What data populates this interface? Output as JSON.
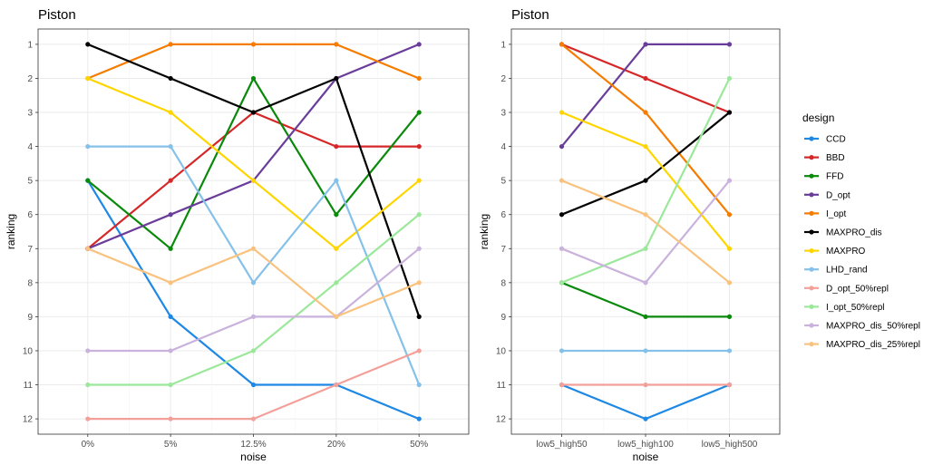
{
  "chart_data": [
    {
      "type": "line",
      "title": "Piston",
      "xlabel": "noise",
      "ylabel": "ranking",
      "categories": [
        "0%",
        "5%",
        "12.5%",
        "20%",
        "50%"
      ],
      "ylim": [
        12,
        1
      ],
      "y_reversed": true,
      "y_ticks": [
        1,
        2,
        3,
        4,
        5,
        6,
        7,
        8,
        9,
        10,
        11,
        12
      ],
      "grid": true,
      "series": [
        {
          "name": "CCD",
          "color": "#1e88e5",
          "values": [
            5,
            9,
            11,
            11,
            12
          ]
        },
        {
          "name": "BBD",
          "color": "#d62728",
          "values": [
            7,
            5,
            3,
            4,
            4
          ]
        },
        {
          "name": "FFD",
          "color": "#0a8a0a",
          "values": [
            5,
            7,
            2,
            6,
            3
          ]
        },
        {
          "name": "D_opt",
          "color": "#6a3d9a",
          "values": [
            7,
            6,
            5,
            2,
            1
          ]
        },
        {
          "name": "I_opt",
          "color": "#f57c00",
          "values": [
            2,
            1,
            1,
            1,
            2
          ]
        },
        {
          "name": "MAXPRO_dis",
          "color": "#000000",
          "values": [
            1,
            2,
            3,
            2,
            9
          ]
        },
        {
          "name": "MAXPRO",
          "color": "#ffd500",
          "values": [
            2,
            3,
            5,
            7,
            5
          ]
        },
        {
          "name": "LHD_rand",
          "color": "#85c1e9",
          "values": [
            4,
            4,
            8,
            5,
            11
          ]
        },
        {
          "name": "D_opt_50%repl",
          "color": "#f4a09a",
          "values": [
            12,
            12,
            12,
            11,
            10
          ]
        },
        {
          "name": "I_opt_50%repl",
          "color": "#9be89b",
          "values": [
            11,
            11,
            10,
            8,
            6
          ]
        },
        {
          "name": "MAXPRO_dis_50%repl",
          "color": "#c9b2dc",
          "values": [
            10,
            10,
            9,
            9,
            7
          ]
        },
        {
          "name": "MAXPRO_dis_25%repl",
          "color": "#f9c27e",
          "values": [
            7,
            8,
            7,
            9,
            8
          ]
        }
      ]
    },
    {
      "type": "line",
      "title": "Piston",
      "xlabel": "noise",
      "ylabel": "ranking",
      "categories": [
        "low5_high50",
        "low5_high100",
        "low5_high500"
      ],
      "ylim": [
        12,
        1
      ],
      "y_reversed": true,
      "y_ticks": [
        1,
        2,
        3,
        4,
        5,
        6,
        7,
        8,
        9,
        10,
        11,
        12
      ],
      "grid": true,
      "series": [
        {
          "name": "CCD",
          "color": "#1e88e5",
          "values": [
            11,
            12,
            11
          ]
        },
        {
          "name": "BBD",
          "color": "#d62728",
          "values": [
            1,
            2,
            3
          ]
        },
        {
          "name": "FFD",
          "color": "#0a8a0a",
          "values": [
            8,
            9,
            9
          ]
        },
        {
          "name": "D_opt",
          "color": "#6a3d9a",
          "values": [
            4,
            1,
            1
          ]
        },
        {
          "name": "I_opt",
          "color": "#f57c00",
          "values": [
            1,
            3,
            6
          ]
        },
        {
          "name": "MAXPRO_dis",
          "color": "#000000",
          "values": [
            6,
            5,
            3
          ]
        },
        {
          "name": "MAXPRO",
          "color": "#ffd500",
          "values": [
            3,
            4,
            7
          ]
        },
        {
          "name": "LHD_rand",
          "color": "#85c1e9",
          "values": [
            10,
            10,
            10
          ]
        },
        {
          "name": "D_opt_50%repl",
          "color": "#f4a09a",
          "values": [
            11,
            11,
            11
          ]
        },
        {
          "name": "I_opt_50%repl",
          "color": "#9be89b",
          "values": [
            8,
            7,
            2
          ]
        },
        {
          "name": "MAXPRO_dis_50%repl",
          "color": "#c9b2dc",
          "values": [
            7,
            8,
            5
          ]
        },
        {
          "name": "MAXPRO_dis_25%repl",
          "color": "#f9c27e",
          "values": [
            5,
            6,
            8
          ]
        }
      ]
    }
  ],
  "legend": {
    "title": "design",
    "placement": "right",
    "items": [
      "CCD",
      "BBD",
      "FFD",
      "D_opt",
      "I_opt",
      "MAXPRO_dis",
      "MAXPRO",
      "LHD_rand",
      "D_opt_50%repl",
      "I_opt_50%repl",
      "MAXPRO_dis_50%repl",
      "MAXPRO_dis_25%repl"
    ]
  }
}
